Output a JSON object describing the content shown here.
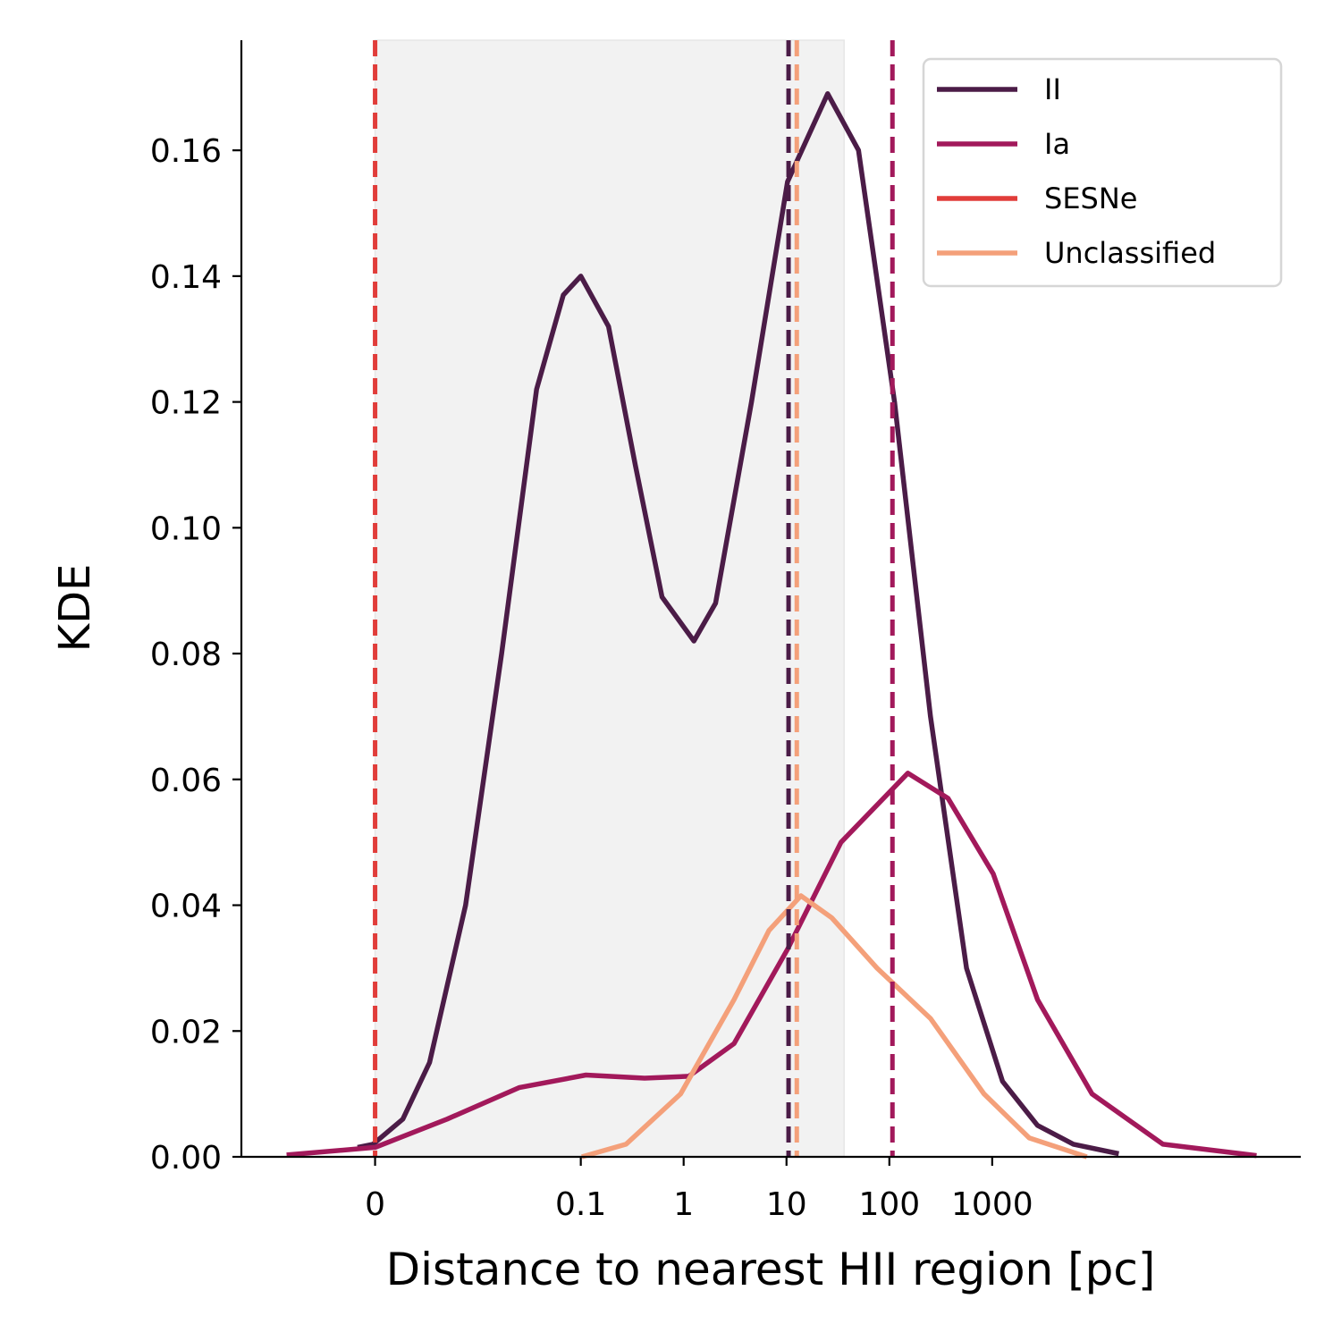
{
  "chart_data": {
    "type": "line",
    "xlabel": "Distance to nearest HII region [pc]",
    "ylabel": "KDE",
    "xlim": [
      -4.3,
      6.0
    ],
    "ylim": [
      0,
      0.1775
    ],
    "xticks": [
      {
        "value": -3,
        "label": "0"
      },
      {
        "value": -1,
        "label": "0.1"
      },
      {
        "value": 0,
        "label": "1"
      },
      {
        "value": 1,
        "label": "10"
      },
      {
        "value": 2,
        "label": "100"
      },
      {
        "value": 3,
        "label": "1000"
      }
    ],
    "yticks": [
      {
        "value": 0,
        "label": "0.00"
      },
      {
        "value": 0.02,
        "label": "0.02"
      },
      {
        "value": 0.04,
        "label": "0.04"
      },
      {
        "value": 0.06,
        "label": "0.06"
      },
      {
        "value": 0.08,
        "label": "0.08"
      },
      {
        "value": 0.1,
        "label": "0.10"
      },
      {
        "value": 0.12,
        "label": "0.12"
      },
      {
        "value": 0.14,
        "label": "0.14"
      },
      {
        "value": 0.16,
        "label": "0.16"
      }
    ],
    "legend": "upper right",
    "shade": [
      -3.0,
      1.56
    ],
    "series": [
      {
        "name": "II",
        "color": "#4b1c47",
        "x": [
          -3.17,
          -3.02,
          -2.73,
          -2.47,
          -2.12,
          -1.77,
          -1.43,
          -1.17,
          -1.0,
          -0.73,
          -0.47,
          -0.21,
          0.1,
          0.31,
          0.66,
          1.01,
          1.4,
          1.7,
          2.05,
          2.4,
          2.75,
          3.1,
          3.44,
          3.79,
          4.23
        ],
        "values": [
          0.0015,
          0.002,
          0.006,
          0.015,
          0.04,
          0.08,
          0.122,
          0.137,
          0.14,
          0.132,
          0.11,
          0.089,
          0.082,
          0.088,
          0.12,
          0.155,
          0.169,
          0.16,
          0.12,
          0.07,
          0.03,
          0.012,
          0.005,
          0.002,
          0.0005
        ],
        "median": 1.02
      },
      {
        "name": "Ia",
        "color": "#a2195b",
        "x": [
          -3.86,
          -3.0,
          -2.3,
          -1.6,
          -0.95,
          -0.38,
          0.05,
          0.49,
          1.01,
          1.53,
          2.18,
          2.57,
          3.01,
          3.44,
          3.97,
          4.66,
          5.57
        ],
        "values": [
          0.0003,
          0.0015,
          0.006,
          0.011,
          0.013,
          0.0125,
          0.0128,
          0.018,
          0.033,
          0.05,
          0.061,
          0.057,
          0.045,
          0.025,
          0.01,
          0.002,
          0.0002
        ],
        "median": 2.03
      },
      {
        "name": "SESNe",
        "color": "#e13d3a",
        "x": [],
        "values": [],
        "median": -3.0
      },
      {
        "name": "Unclassified",
        "color": "#f4a07a",
        "x": [
          -0.99,
          -0.56,
          -0.03,
          0.49,
          0.83,
          1.14,
          1.44,
          1.88,
          2.4,
          2.92,
          3.36,
          3.92
        ],
        "values": [
          0.0,
          0.002,
          0.01,
          0.025,
          0.036,
          0.0415,
          0.038,
          0.03,
          0.022,
          0.01,
          0.003,
          0.0
        ],
        "median": 1.1
      }
    ]
  }
}
